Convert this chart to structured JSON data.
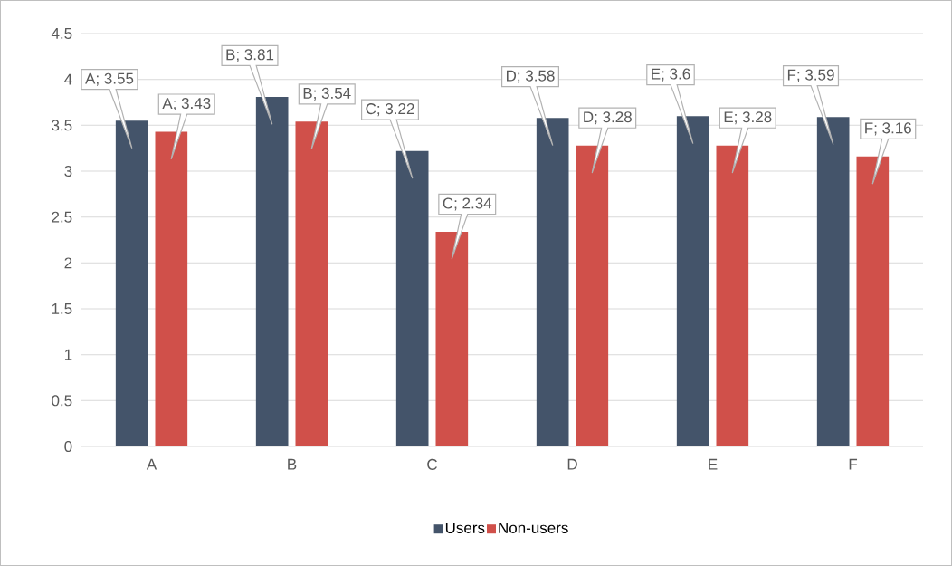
{
  "chart_data": {
    "type": "bar",
    "categories": [
      "A",
      "B",
      "C",
      "D",
      "E",
      "F"
    ],
    "series": [
      {
        "name": "Users",
        "color": "#44546a",
        "values": [
          3.55,
          3.81,
          3.22,
          3.58,
          3.6,
          3.59
        ],
        "value_labels": [
          "A; 3.55",
          "B; 3.81",
          "C; 3.22",
          "D; 3.58",
          "E; 3.6",
          "F; 3.59"
        ]
      },
      {
        "name": "Non-users",
        "color": "#d0504a",
        "values": [
          3.43,
          3.54,
          2.34,
          3.28,
          3.28,
          3.16
        ],
        "value_labels": [
          "A; 3.43",
          "B; 3.54",
          "C; 2.34",
          "D; 3.28",
          "E; 3.28",
          "F; 3.16"
        ]
      }
    ],
    "ylim": [
      0,
      4.5
    ],
    "yticks": [
      0,
      0.5,
      1,
      1.5,
      2,
      2.5,
      3,
      3.5,
      4,
      4.5
    ],
    "grid": "y",
    "legend": "bottom"
  }
}
